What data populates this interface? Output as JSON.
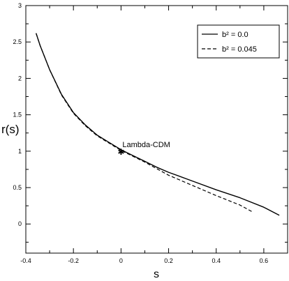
{
  "chart_data": {
    "type": "line",
    "xlabel": "s",
    "ylabel": "r(s)",
    "xlim": [
      -0.4,
      0.7
    ],
    "ylim": [
      -0.4,
      3.0
    ],
    "xticks": [
      "-0.4",
      "-0.2",
      "0",
      "0.2",
      "0.4",
      "0.6"
    ],
    "yticks": [
      "0",
      "0.5",
      "1",
      "1.5",
      "2",
      "2.5",
      "3"
    ],
    "legend_position": "top-right",
    "annotation": {
      "text": "Lambda-CDM",
      "x": 0.0,
      "y": 1.0
    },
    "series": [
      {
        "name": "b² = 0.0",
        "style": "solid",
        "points": [
          [
            -0.357,
            2.62
          ],
          [
            -0.34,
            2.45
          ],
          [
            -0.3,
            2.12
          ],
          [
            -0.25,
            1.78
          ],
          [
            -0.2,
            1.53
          ],
          [
            -0.15,
            1.36
          ],
          [
            -0.1,
            1.22
          ],
          [
            -0.05,
            1.12
          ],
          [
            0.0,
            1.02
          ],
          [
            0.05,
            0.94
          ],
          [
            0.1,
            0.86
          ],
          [
            0.15,
            0.78
          ],
          [
            0.2,
            0.71
          ],
          [
            0.3,
            0.59
          ],
          [
            0.4,
            0.47
          ],
          [
            0.5,
            0.36
          ],
          [
            0.6,
            0.23
          ],
          [
            0.665,
            0.12
          ]
        ]
      },
      {
        "name": "b² = 0.045",
        "style": "dashed",
        "points": [
          [
            -0.357,
            2.62
          ],
          [
            -0.34,
            2.45
          ],
          [
            -0.3,
            2.12
          ],
          [
            -0.25,
            1.77
          ],
          [
            -0.2,
            1.52
          ],
          [
            -0.15,
            1.35
          ],
          [
            -0.1,
            1.21
          ],
          [
            -0.05,
            1.11
          ],
          [
            0.0,
            1.01
          ],
          [
            0.05,
            0.93
          ],
          [
            0.1,
            0.85
          ],
          [
            0.15,
            0.76
          ],
          [
            0.2,
            0.67
          ],
          [
            0.3,
            0.53
          ],
          [
            0.4,
            0.39
          ],
          [
            0.5,
            0.26
          ],
          [
            0.55,
            0.17
          ]
        ]
      }
    ]
  }
}
